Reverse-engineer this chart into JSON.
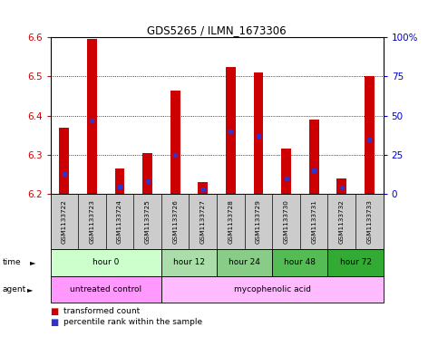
{
  "title": "GDS5265 / ILMN_1673306",
  "samples": [
    "GSM1133722",
    "GSM1133723",
    "GSM1133724",
    "GSM1133725",
    "GSM1133726",
    "GSM1133727",
    "GSM1133728",
    "GSM1133729",
    "GSM1133730",
    "GSM1133731",
    "GSM1133732",
    "GSM1133733"
  ],
  "transformed_count": [
    6.37,
    6.595,
    6.265,
    6.305,
    6.465,
    6.23,
    6.525,
    6.51,
    6.315,
    6.39,
    6.24,
    6.5
  ],
  "percentile_rank_norm": [
    0.13,
    0.47,
    0.05,
    0.08,
    0.25,
    0.03,
    0.4,
    0.37,
    0.1,
    0.15,
    0.04,
    0.35
  ],
  "ymin": 6.2,
  "ymax": 6.6,
  "yticks": [
    6.2,
    6.3,
    6.4,
    6.5,
    6.6
  ],
  "right_yticks": [
    0,
    25,
    50,
    75,
    100
  ],
  "bar_color": "#cc0000",
  "percentile_color": "#3333cc",
  "time_groups": [
    {
      "label": "hour 0",
      "start": 0,
      "end": 3,
      "color": "#ccffcc"
    },
    {
      "label": "hour 12",
      "start": 4,
      "end": 5,
      "color": "#aaddaa"
    },
    {
      "label": "hour 24",
      "start": 6,
      "end": 7,
      "color": "#88cc88"
    },
    {
      "label": "hour 48",
      "start": 8,
      "end": 9,
      "color": "#55bb55"
    },
    {
      "label": "hour 72",
      "start": 10,
      "end": 11,
      "color": "#33aa33"
    }
  ],
  "agent_groups": [
    {
      "label": "untreated control",
      "start": 0,
      "end": 3,
      "color": "#ff99ff"
    },
    {
      "label": "mycophenolic acid",
      "start": 4,
      "end": 11,
      "color": "#ffbbff"
    }
  ],
  "legend_items": [
    {
      "color": "#cc0000",
      "label": "transformed count"
    },
    {
      "color": "#3333cc",
      "label": "percentile rank within the sample"
    }
  ],
  "sample_bg_color": "#cccccc",
  "plot_bg_color": "#ffffff",
  "time_label": "time",
  "agent_label": "agent"
}
